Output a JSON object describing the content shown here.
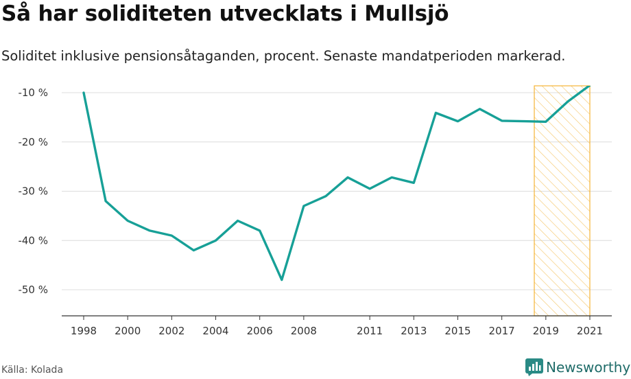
{
  "title": "Så har soliditeten utvecklats i Mullsjö",
  "subtitle": "Soliditet inklusive pensionsåtaganden, procent. Senaste mandatperioden markerad.",
  "source": "Källa: Kolada",
  "brand": {
    "name": "Newsworthy",
    "icon": "newsworthy-logo-icon",
    "color": "#2a8a85"
  },
  "chart_data": {
    "type": "line",
    "x": [
      1998,
      1999,
      2000,
      2001,
      2002,
      2003,
      2004,
      2005,
      2006,
      2007,
      2008,
      2009,
      2010,
      2011,
      2012,
      2013,
      2014,
      2015,
      2016,
      2017,
      2018,
      2019,
      2020,
      2021
    ],
    "series": [
      {
        "values": [
          -10,
          -32,
          -36,
          -38,
          -39,
          -42,
          -40,
          -36,
          -38,
          -48,
          -33,
          -31,
          -27.2,
          -29.5,
          -27.2,
          -28.3,
          -14.1,
          -15.8,
          -13.3,
          -15.7,
          -15.8,
          -15.9,
          -11.8,
          -8.5
        ],
        "color": "#17a097"
      }
    ],
    "x_ticks": [
      1998,
      2000,
      2002,
      2004,
      2006,
      2008,
      2011,
      2013,
      2015,
      2017,
      2019,
      2021
    ],
    "x_tick_labels": [
      "1998",
      "2000",
      "2002",
      "2004",
      "2006",
      "2008",
      "2011",
      "2013",
      "2015",
      "2017",
      "2019",
      "2021"
    ],
    "y_ticks": [
      -10,
      -20,
      -30,
      -40,
      -50
    ],
    "y_tick_labels": [
      "-10 %",
      "-20 %",
      "-30 %",
      "-40 %",
      "-50 %"
    ],
    "xlim": [
      1997,
      2022
    ],
    "ylim": [
      -55.3,
      -8.7
    ],
    "highlight": {
      "from": 2018.5,
      "to": 2021,
      "label": "Senaste mandatperioden",
      "color": "#f5b335"
    },
    "grid": true,
    "xlabel": "",
    "ylabel": ""
  }
}
